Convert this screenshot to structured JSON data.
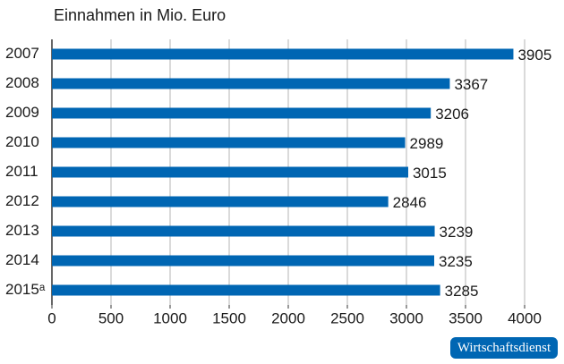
{
  "chart_data": {
    "type": "barh",
    "title": "Einnahmen in Mio. Euro",
    "categories": [
      "2007",
      "2008",
      "2009",
      "2010",
      "2011",
      "2012",
      "2013",
      "2014",
      "2015ᵃ"
    ],
    "values": [
      3905,
      3367,
      3206,
      2989,
      3015,
      2846,
      3239,
      3235,
      3285
    ],
    "color": "#0066b3",
    "xlim": [
      0,
      4000
    ],
    "xticks": [
      0,
      500,
      1000,
      1500,
      2000,
      2500,
      3000,
      3500,
      4000
    ],
    "grid": true,
    "source": "Wirtschaftsdienst"
  }
}
